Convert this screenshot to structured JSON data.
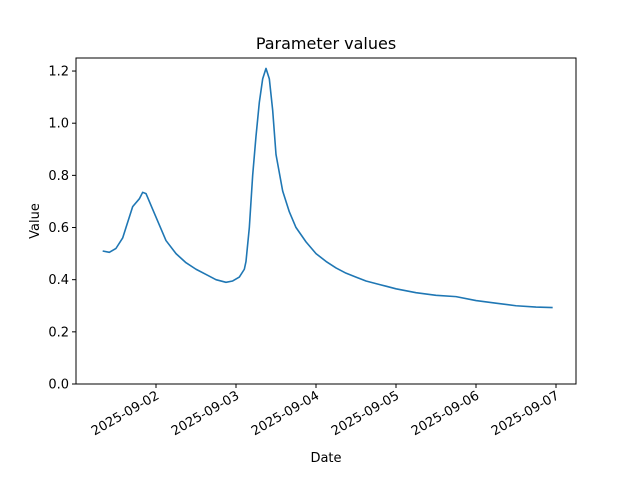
{
  "chart_data": {
    "type": "line",
    "title": "Parameter values",
    "xlabel": "Date",
    "ylabel": "Value",
    "x": [
      "2025-09-01T08:00",
      "2025-09-01T10:00",
      "2025-09-01T12:00",
      "2025-09-01T14:00",
      "2025-09-01T15:00",
      "2025-09-01T17:00",
      "2025-09-01T19:00",
      "2025-09-01T20:00",
      "2025-09-01T21:00",
      "2025-09-01T23:00",
      "2025-09-02T01:00",
      "2025-09-02T03:00",
      "2025-09-02T06:00",
      "2025-09-02T09:00",
      "2025-09-02T12:00",
      "2025-09-02T15:00",
      "2025-09-02T18:00",
      "2025-09-02T21:00",
      "2025-09-02T23:00",
      "2025-09-03T01:00",
      "2025-09-03T02:30",
      "2025-09-03T03:00",
      "2025-09-03T04:00",
      "2025-09-03T05:00",
      "2025-09-03T06:00",
      "2025-09-03T07:00",
      "2025-09-03T08:00",
      "2025-09-03T09:00",
      "2025-09-03T10:00",
      "2025-09-03T11:00",
      "2025-09-03T12:00",
      "2025-09-03T14:00",
      "2025-09-03T16:00",
      "2025-09-03T18:00",
      "2025-09-03T21:00",
      "2025-09-04T00:00",
      "2025-09-04T03:00",
      "2025-09-04T06:00",
      "2025-09-04T09:00",
      "2025-09-04T12:00",
      "2025-09-04T15:00",
      "2025-09-04T18:00",
      "2025-09-04T21:00",
      "2025-09-05T00:00",
      "2025-09-05T06:00",
      "2025-09-05T12:00",
      "2025-09-05T18:00",
      "2025-09-06T00:00",
      "2025-09-06T06:00",
      "2025-09-06T12:00",
      "2025-09-06T18:00",
      "2025-09-06T23:00"
    ],
    "values": [
      0.51,
      0.505,
      0.52,
      0.56,
      0.6,
      0.68,
      0.71,
      0.735,
      0.73,
      0.67,
      0.61,
      0.55,
      0.5,
      0.465,
      0.44,
      0.42,
      0.4,
      0.39,
      0.395,
      0.41,
      0.44,
      0.47,
      0.6,
      0.8,
      0.95,
      1.08,
      1.17,
      1.21,
      1.17,
      1.05,
      0.88,
      0.74,
      0.66,
      0.6,
      0.545,
      0.5,
      0.47,
      0.445,
      0.425,
      0.41,
      0.395,
      0.385,
      0.375,
      0.365,
      0.35,
      0.34,
      0.335,
      0.32,
      0.31,
      0.3,
      0.295,
      0.293
    ],
    "color": "#1f77b4",
    "xlim": [
      "2025-09-01T00:00",
      "2025-09-07T06:00"
    ],
    "xticks": [
      "2025-09-02",
      "2025-09-03",
      "2025-09-04",
      "2025-09-05",
      "2025-09-06",
      "2025-09-07"
    ],
    "ylim": [
      0,
      1.25
    ],
    "yticks": [
      {
        "value": 0,
        "label": "0.0"
      },
      0.2,
      0.4,
      0.6,
      0.8,
      {
        "value": 1,
        "label": "1.0"
      },
      1.2
    ]
  }
}
